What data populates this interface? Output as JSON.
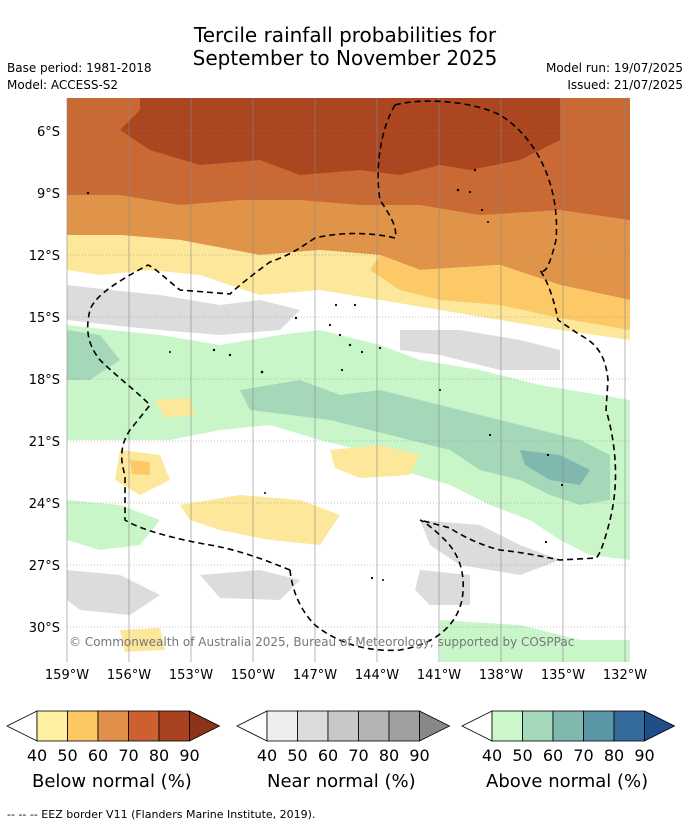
{
  "header": {
    "title_line1": "Tercile rainfall probabilities for",
    "title_line2": "September to November 2025",
    "base_period": "Base period: 1981-2018",
    "model": "Model: ACCESS-S2",
    "model_run": "Model run: 19/07/2025",
    "issued": "Issued: 21/07/2025"
  },
  "map": {
    "lat_labels": [
      "6°S",
      "9°S",
      "12°S",
      "15°S",
      "18°S",
      "21°S",
      "24°S",
      "27°S",
      "30°S"
    ],
    "lon_labels": [
      "159°W",
      "156°W",
      "153°W",
      "150°W",
      "147°W",
      "144°W",
      "141°W",
      "138°W",
      "135°W",
      "132°W"
    ],
    "copyright": "© Commonwealth of Australia 2025, Bureau of Meteorology, supported by COSPPac",
    "border_style": "dashed",
    "gridlines": true
  },
  "legend": {
    "tick_values": [
      "40",
      "50",
      "60",
      "70",
      "80",
      "90"
    ],
    "below": {
      "label": "Below normal (%)",
      "colors": [
        "#fef0a0",
        "#fdc862",
        "#e09048",
        "#cc6030",
        "#a84220",
        "#8c3418"
      ]
    },
    "near": {
      "label": "Near normal (%)",
      "colors": [
        "#eeeeee",
        "#dcdcdc",
        "#c8c8c8",
        "#b4b4b4",
        "#a0a0a0",
        "#888888"
      ]
    },
    "above": {
      "label": "Above normal (%)",
      "colors": [
        "#cbf7cb",
        "#a5d8b8",
        "#80b8b0",
        "#5a96a5",
        "#356a9c",
        "#1f4f86"
      ]
    }
  },
  "footer": "--  --  -- EEZ border V11 (Flanders Marine Institute, 2019)."
}
